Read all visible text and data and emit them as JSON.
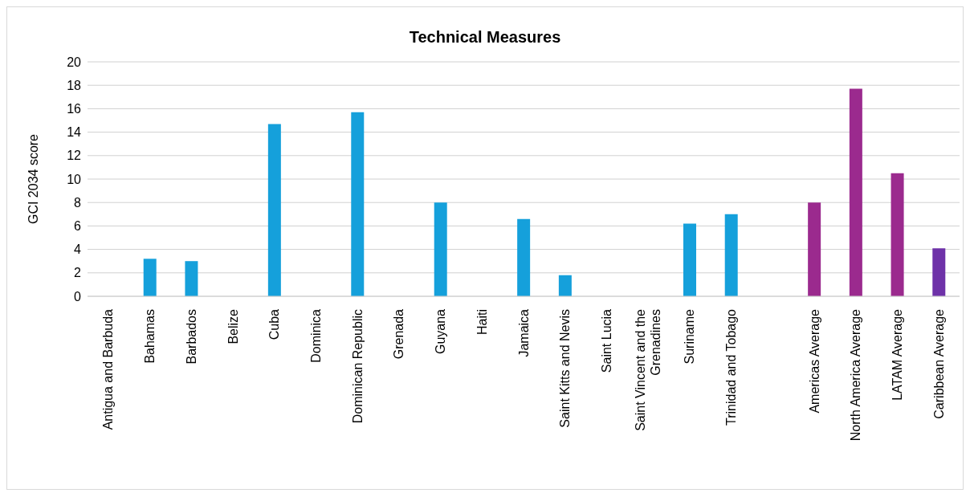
{
  "chart_data": {
    "type": "bar",
    "title": "Technical Measures",
    "ylabel": "GCI 2034 score",
    "categories": [
      "Antigua and Barbuda",
      "Bahamas",
      "Barbados",
      "Belize",
      "Cuba",
      "Dominica",
      "Dominican Republic",
      "Grenada",
      "Guyana",
      "Haiti",
      "Jamaica",
      "Saint Kitts and Nevis",
      "Saint Lucia",
      "Saint Vincent and the Grenadines",
      "Suriname",
      "Trinidad and Tobago",
      null,
      "Americas Average",
      "North America Average",
      "LATAM Average",
      "Caribbean Average"
    ],
    "values": [
      0,
      3.2,
      3.0,
      0,
      14.7,
      0,
      15.7,
      0,
      8.0,
      0,
      6.6,
      1.8,
      0,
      0,
      6.2,
      7.0,
      null,
      8.0,
      17.7,
      10.5,
      4.1
    ],
    "colors": [
      "#15a0db",
      "#15a0db",
      "#15a0db",
      "#15a0db",
      "#15a0db",
      "#15a0db",
      "#15a0db",
      "#15a0db",
      "#15a0db",
      "#15a0db",
      "#15a0db",
      "#15a0db",
      "#15a0db",
      "#15a0db",
      "#15a0db",
      "#15a0db",
      "#15a0db",
      "#9b2a8e",
      "#9b2a8e",
      "#9b2a8e",
      "#6e32a8"
    ],
    "ylim": [
      0,
      20
    ],
    "yticks": [
      0,
      2,
      4,
      6,
      8,
      10,
      12,
      14,
      16,
      18,
      20
    ],
    "grid": "y",
    "legend": false
  }
}
